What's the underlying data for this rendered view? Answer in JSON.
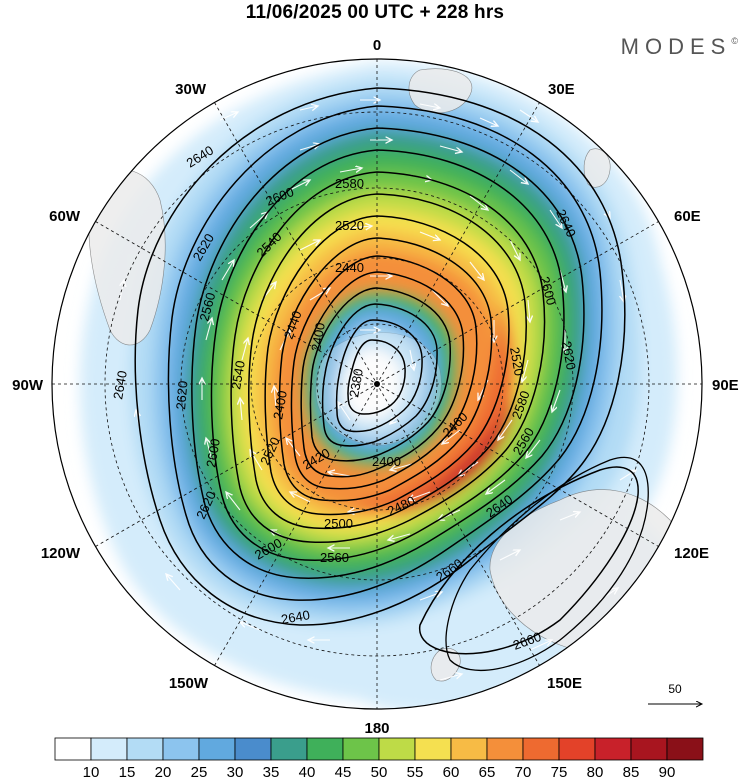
{
  "title": "11/06/2025  00 UTC  + 228 hrs",
  "brand": "MODES",
  "brand_mark": "©",
  "map": {
    "projection": "polar-stereographic-south",
    "meridian_labels": {
      "top": "0",
      "bottom": "180",
      "left": "90W",
      "right": "90E",
      "w30": "30W",
      "e30": "30E",
      "w60": "60W",
      "e60": "60E",
      "w120": "120W",
      "e120": "120E",
      "w150": "150W",
      "e150": "150E"
    },
    "contour_labels": [
      "2640",
      "2580",
      "2600",
      "2520",
      "2620",
      "2540",
      "2440",
      "2560",
      "2400",
      "2380",
      "2500",
      "2460",
      "2420",
      "2660",
      "2660",
      "2640",
      "2640",
      "2640",
      "2600",
      "2620",
      "2520",
      "2580",
      "2560",
      "2500",
      "2480"
    ],
    "vector_reference": "50",
    "fill_colors": [
      "#ffffff",
      "#d4ecfb",
      "#b3dcf5",
      "#8cc4ee",
      "#61a9df",
      "#4a8ccc",
      "#3a9e8c",
      "#3fb05a",
      "#6dc449",
      "#bedb47",
      "#f5e050",
      "#f7bb45",
      "#f48f3a",
      "#ee6a30",
      "#e34229",
      "#c8212a",
      "#a8151f",
      "#8a1018"
    ]
  },
  "colorbar": {
    "ticks": [
      "10",
      "15",
      "20",
      "25",
      "30",
      "35",
      "40",
      "45",
      "50",
      "55",
      "60",
      "65",
      "70",
      "75",
      "80",
      "85",
      "90"
    ],
    "colors": [
      "#ffffff",
      "#d4ecfb",
      "#b3dcf5",
      "#8cc4ee",
      "#61a9df",
      "#4a8ccc",
      "#3a9e8c",
      "#3fb05a",
      "#6dc449",
      "#bedb47",
      "#f5e050",
      "#f7bb45",
      "#f48f3a",
      "#ee6a30",
      "#e34229",
      "#c8212a",
      "#a8151f",
      "#8a1018"
    ]
  }
}
